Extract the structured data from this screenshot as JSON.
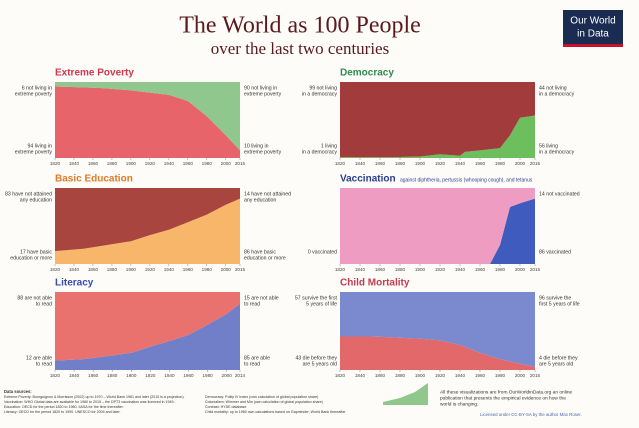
{
  "header": {
    "title": "The World as 100 People",
    "subtitle": "over the last two centuries",
    "logo": [
      "Our World",
      "in Data"
    ]
  },
  "chart_data": [
    {
      "type": "stacked_area",
      "title": "Extreme Poverty",
      "title_color": "#d1364c",
      "x": [
        1820,
        1850,
        1870,
        1900,
        1920,
        1940,
        1960,
        1980,
        2000,
        2015
      ],
      "series": [
        {
          "name": "living in extreme poverty",
          "color": "#e8646b",
          "values": [
            94,
            93,
            92,
            89,
            86,
            83,
            75,
            55,
            30,
            10
          ]
        },
        {
          "name": "not living in extreme poverty",
          "color": "#8fc78d",
          "values": [
            6,
            7,
            8,
            11,
            14,
            17,
            25,
            45,
            70,
            90
          ]
        }
      ],
      "xlim": [
        1820,
        2015
      ],
      "ylim": [
        0,
        100
      ],
      "xticks": [
        1820,
        1840,
        1860,
        1880,
        1900,
        1920,
        1940,
        1960,
        1980,
        2000,
        2015
      ],
      "annotations": [
        [
          "6 not living in",
          "extreme poverty"
        ],
        [
          "94 living in",
          "extreme poverty"
        ],
        [
          "90 not living in",
          "extreme poverty"
        ],
        [
          "10 living in",
          "extreme poverty"
        ]
      ]
    },
    {
      "type": "stacked_area",
      "title": "Democracy",
      "title_color": "#2e8a4e",
      "x": [
        1820,
        1870,
        1900,
        1920,
        1940,
        1945,
        1960,
        1980,
        1990,
        2000,
        2015
      ],
      "series": [
        {
          "name": "living in a democracy",
          "color": "#6cbf5c",
          "values": [
            1,
            1,
            2,
            5,
            3,
            8,
            10,
            13,
            30,
            53,
            56
          ]
        },
        {
          "name": "not living in a democracy",
          "color": "#a23b3b",
          "values": [
            99,
            99,
            98,
            95,
            97,
            92,
            90,
            87,
            70,
            47,
            44
          ]
        }
      ],
      "xlim": [
        1820,
        2015
      ],
      "ylim": [
        0,
        100
      ],
      "xticks": [
        1820,
        1840,
        1860,
        1880,
        1900,
        1920,
        1940,
        1960,
        1980,
        2000,
        2015
      ],
      "annotations": [
        [
          "99 not living",
          "in a democracy"
        ],
        [
          "1 living",
          "in a democracy"
        ],
        [
          "44 not living",
          "in a democracy"
        ],
        [
          "56 living",
          "in a democracy"
        ]
      ]
    },
    {
      "type": "stacked_area",
      "title": "Basic Education",
      "title_color": "#e07a28",
      "x": [
        1820,
        1850,
        1870,
        1900,
        1920,
        1940,
        1960,
        1980,
        2000,
        2015
      ],
      "series": [
        {
          "name": "have basic education or more",
          "color": "#f8b66a",
          "values": [
            17,
            20,
            24,
            30,
            38,
            45,
            55,
            65,
            78,
            86
          ]
        },
        {
          "name": "have not attained any education",
          "color": "#a8453f",
          "values": [
            83,
            80,
            76,
            70,
            62,
            55,
            45,
            35,
            22,
            14
          ]
        }
      ],
      "xlim": [
        1820,
        2015
      ],
      "ylim": [
        0,
        100
      ],
      "xticks": [
        1820,
        1840,
        1860,
        1880,
        1900,
        1920,
        1940,
        1960,
        1980,
        2000,
        2015
      ],
      "annotations": [
        [
          "83 have not attained",
          "any education"
        ],
        [
          "17 have basic",
          "education or more"
        ],
        [
          "14 have not attained",
          "any education"
        ],
        [
          "86 have basic",
          "education or more"
        ]
      ]
    },
    {
      "type": "stacked_area",
      "title": "Vaccination",
      "subtitle": "against diphtheria, pertussis (whooping cough), and tetanus",
      "title_color": "#2b3d8f",
      "x": [
        1820,
        1970,
        1980,
        1990,
        2000,
        2015
      ],
      "series": [
        {
          "name": "vaccinated",
          "color": "#3f5bbd",
          "values": [
            0,
            0,
            25,
            75,
            80,
            86
          ]
        },
        {
          "name": "not vaccinated",
          "color": "#ee9cc2",
          "values": [
            100,
            100,
            75,
            25,
            20,
            14
          ]
        }
      ],
      "xlim": [
        1820,
        2015
      ],
      "ylim": [
        0,
        100
      ],
      "xticks": [
        1820,
        1840,
        1860,
        1880,
        1900,
        1920,
        1940,
        1960,
        1980,
        2000,
        2015
      ],
      "annotations": [
        [],
        [
          "0 vaccinated"
        ],
        [
          "14 not vaccinated"
        ],
        [
          "86 vaccinated"
        ]
      ]
    },
    {
      "type": "stacked_area",
      "title": "Literacy",
      "title_color": "#3a4bae",
      "x": [
        1820,
        1850,
        1870,
        1900,
        1920,
        1940,
        1960,
        1980,
        2000,
        2014
      ],
      "series": [
        {
          "name": "able to read",
          "color": "#707fc8",
          "values": [
            12,
            14,
            17,
            22,
            30,
            37,
            45,
            58,
            72,
            85
          ]
        },
        {
          "name": "not able to read",
          "color": "#e9716e",
          "values": [
            88,
            86,
            83,
            78,
            70,
            63,
            55,
            42,
            28,
            15
          ]
        }
      ],
      "xlim": [
        1820,
        2014
      ],
      "ylim": [
        0,
        100
      ],
      "xticks": [
        1820,
        1840,
        1860,
        1880,
        1900,
        1920,
        1940,
        1960,
        1980,
        2000,
        2014
      ],
      "annotations": [
        [
          "88 are not able",
          "to read"
        ],
        [
          "12 are able",
          "to read"
        ],
        [
          "15 are not able",
          "to read"
        ],
        [
          "85 are able",
          "to read"
        ]
      ]
    },
    {
      "type": "stacked_area",
      "title": "Child Mortality",
      "title_color": "#c23b51",
      "x": [
        1820,
        1850,
        1870,
        1900,
        1920,
        1940,
        1960,
        1980,
        2000,
        2015
      ],
      "series": [
        {
          "name": "die before they are 5 years old",
          "color": "#e2686a",
          "values": [
            43,
            43,
            42,
            40,
            38,
            32,
            22,
            14,
            8,
            4
          ]
        },
        {
          "name": "survive the first 5 years of life",
          "color": "#7b8acf",
          "values": [
            57,
            57,
            58,
            60,
            62,
            68,
            78,
            86,
            92,
            96
          ]
        }
      ],
      "xlim": [
        1820,
        2015
      ],
      "ylim": [
        0,
        100
      ],
      "xticks": [
        1820,
        1840,
        1860,
        1880,
        1900,
        1920,
        1940,
        1960,
        1980,
        2000,
        2015
      ],
      "annotations": [
        [
          "57 survive the first",
          "5 years of life"
        ],
        [
          "43 die before they",
          "are 5 years old"
        ],
        [
          "96 survive the",
          "first 5 years of life"
        ],
        [
          "4 die before they",
          "are 5 years old"
        ]
      ]
    }
  ],
  "footer": {
    "sources": [
      "Data sources:",
      "Extreme Poverty: Bourguignon & Morrisson (2002) up to 1970 – World Bank 1981 and later (2015 is a projection).",
      "Vaccination: WHO Global data are available for 1980 to 2015 – the DPT3 vaccination was licenced in 1949.",
      "Education: OECD for the period 1820 to 1960. IIASA for the time thereafter.",
      "Literacy: OECD for the period 1820 to 1990. UNESCO for 2004 and later."
    ],
    "sources2": [
      "Democracy: Polity IV Index (own calculation of global population share)",
      "Colonialism: Wimmer and Min (own calculation of global population share)",
      "Contrast: HYDE database",
      "Child mortality: up to 1960 own calculations based on Gapminder; World Bank thereafter"
    ],
    "about": [
      "All these visualizations are from OurWorldinData.org an online",
      "publication that presents the empirical evidence on how the",
      "world is changing."
    ],
    "license": "Licensed under CC-BY-SA by the author Max Roser."
  }
}
